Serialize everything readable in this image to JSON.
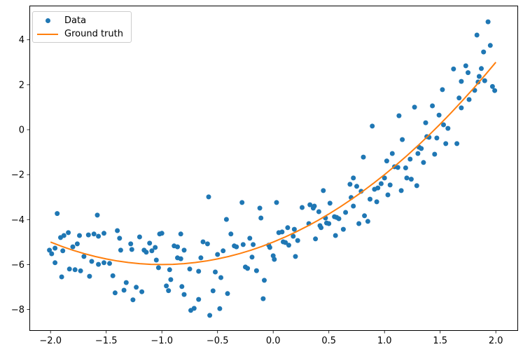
{
  "chart_data": {
    "type": "scatter",
    "title": "",
    "xlabel": "",
    "ylabel": "",
    "xlim": [
      -2.19,
      2.2
    ],
    "ylim": [
      -8.95,
      5.52
    ],
    "grid": false,
    "colors": {
      "scatter": "#1f77b4",
      "line": "#ff7f0e",
      "spine": "#000000",
      "tick": "#000000",
      "legend_border": "#cccccc",
      "background": "#ffffff"
    },
    "x_ticks": {
      "values": [
        -2.0,
        -1.5,
        -1.0,
        -0.5,
        0.0,
        0.5,
        1.0,
        1.5,
        2.0
      ],
      "labels": [
        "−2.0",
        "−1.5",
        "−1.0",
        "−0.5",
        "0.0",
        "0.5",
        "1.0",
        "1.5",
        "2.0"
      ]
    },
    "y_ticks": {
      "values": [
        4,
        2,
        0,
        -2,
        -4,
        -6,
        -8
      ],
      "labels": [
        "4",
        "2",
        "0",
        "−2",
        "−4",
        "−6",
        "−8"
      ]
    },
    "legend": {
      "position": "upper left",
      "items": [
        {
          "label": "Data",
          "type": "marker",
          "color": "#1f77b4"
        },
        {
          "label": "Ground truth",
          "type": "line",
          "color": "#ff7f0e"
        }
      ]
    },
    "series": [
      {
        "name": "Data",
        "type": "scatter",
        "color": "#1f77b4",
        "marker": "circle",
        "points": [
          [
            -2.01,
            -5.36
          ],
          [
            -1.99,
            -5.52
          ],
          [
            -1.96,
            -5.27
          ],
          [
            -1.96,
            -5.92
          ],
          [
            -1.94,
            -3.73
          ],
          [
            -1.91,
            -4.8
          ],
          [
            -1.9,
            -6.55
          ],
          [
            -1.89,
            -5.39
          ],
          [
            -1.88,
            -4.71
          ],
          [
            -1.84,
            -4.58
          ],
          [
            -1.83,
            -6.2
          ],
          [
            -1.8,
            -5.21
          ],
          [
            -1.78,
            -6.23
          ],
          [
            -1.76,
            -5.08
          ],
          [
            -1.74,
            -4.71
          ],
          [
            -1.73,
            -6.28
          ],
          [
            -1.7,
            -5.64
          ],
          [
            -1.66,
            -4.68
          ],
          [
            -1.65,
            -6.52
          ],
          [
            -1.63,
            -5.86
          ],
          [
            -1.61,
            -4.64
          ],
          [
            -1.58,
            -3.8
          ],
          [
            -1.57,
            -4.74
          ],
          [
            -1.57,
            -5.99
          ],
          [
            -1.52,
            -4.61
          ],
          [
            -1.52,
            -5.92
          ],
          [
            -1.47,
            -5.95
          ],
          [
            -1.44,
            -6.5
          ],
          [
            -1.42,
            -7.26
          ],
          [
            -1.4,
            -4.49
          ],
          [
            -1.38,
            -4.83
          ],
          [
            -1.37,
            -5.36
          ],
          [
            -1.34,
            -7.14
          ],
          [
            -1.32,
            -6.8
          ],
          [
            -1.28,
            -5.08
          ],
          [
            -1.27,
            -5.33
          ],
          [
            -1.26,
            -7.57
          ],
          [
            -1.23,
            -7.01
          ],
          [
            -1.2,
            -4.77
          ],
          [
            -1.18,
            -7.21
          ],
          [
            -1.16,
            -5.36
          ],
          [
            -1.14,
            -5.45
          ],
          [
            -1.11,
            -5.05
          ],
          [
            -1.09,
            -5.39
          ],
          [
            -1.06,
            -5.24
          ],
          [
            -1.05,
            -5.8
          ],
          [
            -1.03,
            -6.14
          ],
          [
            -1.02,
            -4.64
          ],
          [
            -1.0,
            -4.61
          ],
          [
            -0.96,
            -6.95
          ],
          [
            -0.94,
            -7.16
          ],
          [
            -0.93,
            -6.23
          ],
          [
            -0.92,
            -6.67
          ],
          [
            -0.89,
            -5.17
          ],
          [
            -0.86,
            -5.21
          ],
          [
            -0.86,
            -5.7
          ],
          [
            -0.83,
            -4.64
          ],
          [
            -0.83,
            -5.74
          ],
          [
            -0.82,
            -6.98
          ],
          [
            -0.8,
            -5.36
          ],
          [
            -0.8,
            -7.33
          ],
          [
            -0.75,
            -6.2
          ],
          [
            -0.74,
            -8.04
          ],
          [
            -0.71,
            -7.95
          ],
          [
            -0.67,
            -6.3
          ],
          [
            -0.67,
            -7.55
          ],
          [
            -0.65,
            -5.7
          ],
          [
            -0.63,
            -4.99
          ],
          [
            -0.59,
            -5.08
          ],
          [
            -0.58,
            -2.99
          ],
          [
            -0.57,
            -8.26
          ],
          [
            -0.54,
            -7.17
          ],
          [
            -0.52,
            -6.33
          ],
          [
            -0.5,
            -5.55
          ],
          [
            -0.48,
            -7.96
          ],
          [
            -0.47,
            -6.58
          ],
          [
            -0.45,
            -5.39
          ],
          [
            -0.42,
            -3.99
          ],
          [
            -0.41,
            -7.29
          ],
          [
            -0.38,
            -4.64
          ],
          [
            -0.35,
            -5.17
          ],
          [
            -0.33,
            -5.21
          ],
          [
            -0.28,
            -3.24
          ],
          [
            -0.27,
            -5.11
          ],
          [
            -0.25,
            -6.11
          ],
          [
            -0.23,
            -6.17
          ],
          [
            -0.21,
            -4.83
          ],
          [
            -0.19,
            -5.67
          ],
          [
            -0.18,
            -5.11
          ],
          [
            -0.15,
            -6.27
          ],
          [
            -0.12,
            -3.49
          ],
          [
            -0.11,
            -3.93
          ],
          [
            -0.09,
            -7.52
          ],
          [
            -0.08,
            -6.7
          ],
          [
            -0.04,
            -5.14
          ],
          [
            -0.03,
            -5.24
          ],
          [
            0.0,
            -5.61
          ],
          [
            0.01,
            -5.77
          ],
          [
            0.03,
            -3.24
          ],
          [
            0.05,
            -4.58
          ],
          [
            0.08,
            -4.55
          ],
          [
            0.09,
            -4.99
          ],
          [
            0.11,
            -5.02
          ],
          [
            0.13,
            -4.36
          ],
          [
            0.14,
            -5.14
          ],
          [
            0.18,
            -4.74
          ],
          [
            0.19,
            -4.43
          ],
          [
            0.2,
            -5.64
          ],
          [
            0.22,
            -4.93
          ],
          [
            0.26,
            -3.46
          ],
          [
            0.32,
            -4.18
          ],
          [
            0.33,
            -3.34
          ],
          [
            0.36,
            -3.49
          ],
          [
            0.37,
            -3.4
          ],
          [
            0.38,
            -4.86
          ],
          [
            0.41,
            -3.65
          ],
          [
            0.42,
            -4.27
          ],
          [
            0.43,
            -4.36
          ],
          [
            0.45,
            -2.71
          ],
          [
            0.47,
            -3.93
          ],
          [
            0.48,
            -4.15
          ],
          [
            0.5,
            -4.18
          ],
          [
            0.51,
            -3.27
          ],
          [
            0.55,
            -3.87
          ],
          [
            0.56,
            -4.71
          ],
          [
            0.57,
            -3.9
          ],
          [
            0.59,
            -3.96
          ],
          [
            0.63,
            -4.43
          ],
          [
            0.65,
            -3.68
          ],
          [
            0.69,
            -2.43
          ],
          [
            0.7,
            -3.02
          ],
          [
            0.72,
            -2.15
          ],
          [
            0.72,
            -3.4
          ],
          [
            0.75,
            -2.52
          ],
          [
            0.77,
            -4.18
          ],
          [
            0.79,
            -2.74
          ],
          [
            0.81,
            -1.22
          ],
          [
            0.82,
            -3.83
          ],
          [
            0.85,
            -4.08
          ],
          [
            0.87,
            -3.09
          ],
          [
            0.89,
            0.16
          ],
          [
            0.91,
            -2.65
          ],
          [
            0.93,
            -3.21
          ],
          [
            0.94,
            -2.59
          ],
          [
            0.97,
            -2.4
          ],
          [
            1.0,
            -2.15
          ],
          [
            1.02,
            -1.39
          ],
          [
            1.03,
            -2.9
          ],
          [
            1.05,
            -2.46
          ],
          [
            1.07,
            -1.06
          ],
          [
            1.09,
            -1.65
          ],
          [
            1.12,
            -1.68
          ],
          [
            1.13,
            0.62
          ],
          [
            1.15,
            -2.71
          ],
          [
            1.16,
            -0.44
          ],
          [
            1.19,
            -1.7
          ],
          [
            1.2,
            -2.15
          ],
          [
            1.23,
            -1.31
          ],
          [
            1.24,
            -2.2
          ],
          [
            1.27,
            1.0
          ],
          [
            1.29,
            -2.49
          ],
          [
            1.3,
            -1.06
          ],
          [
            1.31,
            -0.78
          ],
          [
            1.33,
            -0.84
          ],
          [
            1.35,
            -1.46
          ],
          [
            1.37,
            0.31
          ],
          [
            1.38,
            -0.31
          ],
          [
            1.4,
            -0.34
          ],
          [
            1.43,
            1.06
          ],
          [
            1.45,
            -1.09
          ],
          [
            1.47,
            -0.37
          ],
          [
            1.49,
            0.65
          ],
          [
            1.52,
            1.78
          ],
          [
            1.53,
            0.22
          ],
          [
            1.55,
            -0.62
          ],
          [
            1.57,
            0.06
          ],
          [
            1.62,
            2.7
          ],
          [
            1.65,
            -0.62
          ],
          [
            1.67,
            1.41
          ],
          [
            1.69,
            0.97
          ],
          [
            1.69,
            2.15
          ],
          [
            1.73,
            2.84
          ],
          [
            1.75,
            2.54
          ],
          [
            1.76,
            1.34
          ],
          [
            1.81,
            1.75
          ],
          [
            1.83,
            4.21
          ],
          [
            1.84,
            2.12
          ],
          [
            1.85,
            2.37
          ],
          [
            1.87,
            2.72
          ],
          [
            1.89,
            3.46
          ],
          [
            1.9,
            2.18
          ],
          [
            1.93,
            4.8
          ],
          [
            1.95,
            3.75
          ],
          [
            1.97,
            1.92
          ],
          [
            1.99,
            1.74
          ]
        ]
      },
      {
        "name": "Ground truth",
        "type": "line",
        "color": "#ff7f0e",
        "points": [
          [
            -2,
            -5
          ],
          [
            -1.9,
            -5.19
          ],
          [
            -1.8,
            -5.36
          ],
          [
            -1.7,
            -5.51
          ],
          [
            -1.6,
            -5.64
          ],
          [
            -1.5,
            -5.75
          ],
          [
            -1.4,
            -5.84
          ],
          [
            -1.3,
            -5.91
          ],
          [
            -1.2,
            -5.96
          ],
          [
            -1.1,
            -5.99
          ],
          [
            -1,
            -6
          ],
          [
            -0.9,
            -5.99
          ],
          [
            -0.8,
            -5.96
          ],
          [
            -0.7,
            -5.91
          ],
          [
            -0.6,
            -5.84
          ],
          [
            -0.5,
            -5.75
          ],
          [
            -0.4,
            -5.64
          ],
          [
            -0.3,
            -5.51
          ],
          [
            -0.2,
            -5.36
          ],
          [
            -0.1,
            -5.19
          ],
          [
            0,
            -5
          ],
          [
            0.1,
            -4.79
          ],
          [
            0.2,
            -4.56
          ],
          [
            0.3,
            -4.31
          ],
          [
            0.4,
            -4.04
          ],
          [
            0.5,
            -3.75
          ],
          [
            0.6,
            -3.44
          ],
          [
            0.7,
            -3.11
          ],
          [
            0.8,
            -2.76
          ],
          [
            0.9,
            -2.39
          ],
          [
            1,
            -2
          ],
          [
            1.1,
            -1.59
          ],
          [
            1.2,
            -1.16
          ],
          [
            1.3,
            -0.71
          ],
          [
            1.4,
            -0.24
          ],
          [
            1.5,
            0.25
          ],
          [
            1.6,
            0.76
          ],
          [
            1.7,
            1.29
          ],
          [
            1.8,
            1.84
          ],
          [
            1.9,
            2.41
          ],
          [
            2,
            3
          ]
        ]
      }
    ]
  }
}
